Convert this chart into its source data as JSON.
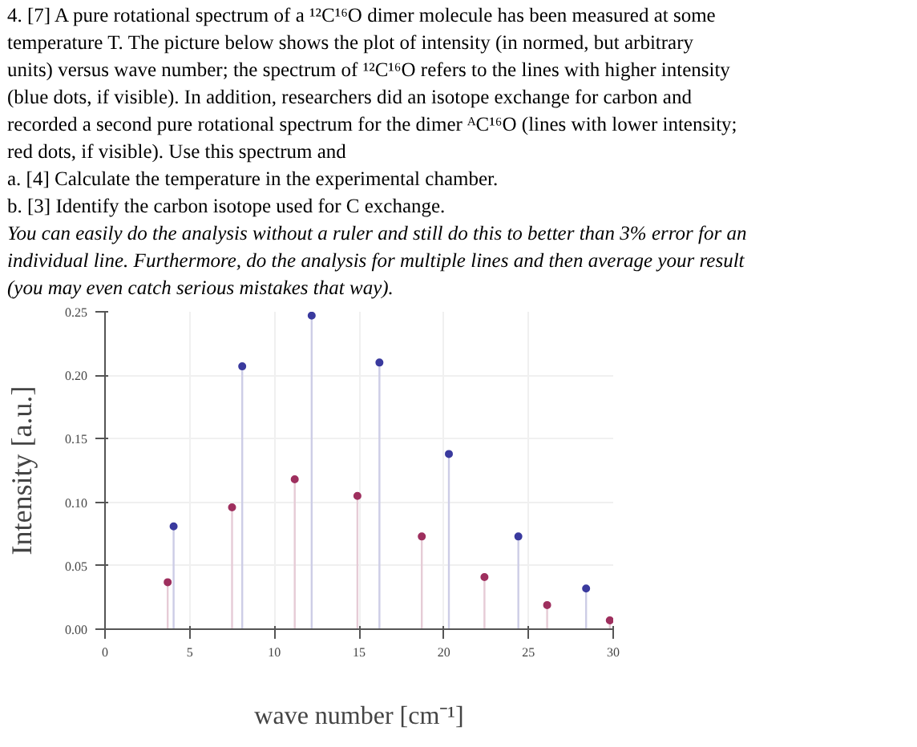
{
  "chart_data": {
    "type": "lollipop",
    "title": "4. [7] A pure rotational spectrum of a ¹²C¹⁶O dimer molecule has been measured at some temperature T. The picture below shows the plot of intensity (in normed, but arbitrary units) versus wave number; the spectrum of ¹²C¹⁶O refers to the lines with higher intensity (blue dots, if visible). In addition, researchers did an isotope exchange for carbon and recorded a second pure rotational spectrum for the dimer ᴬC¹⁶O (lines with lower intensity; red dots, if visible). Use this spectrum and",
    "annotations": [
      "a. [4] Calculate the temperature in the experimental chamber.",
      "b. [3] Identify the carbon isotope used for C exchange.",
      "You can easily do the analysis without a ruler and still do this to better than 3% error for an individual line. Furthermore, do the analysis for multiple lines and then average your result (you may even catch serious mistakes that way)."
    ],
    "xlabel": "wave number [cm⁻¹]",
    "ylabel": "Intensity [a.u.]",
    "xlim": [
      0,
      30
    ],
    "ylim": [
      0,
      0.25
    ],
    "xticks": [
      0,
      5,
      10,
      15,
      20,
      25,
      30
    ],
    "yticks": [
      {
        "value": 0,
        "label": "0.00"
      },
      {
        "value": 0.05,
        "label": "0.05"
      },
      {
        "value": 0.1,
        "label": "0.10"
      },
      {
        "value": 0.15,
        "label": "0.15"
      },
      {
        "value": 0.2,
        "label": "0.20"
      },
      {
        "value": 0.25,
        "label": "0.25"
      }
    ],
    "grid": true,
    "marker": "circle",
    "series": [
      {
        "color": "#3a3a9e",
        "x": [
          4.05,
          8.1,
          12.2,
          16.2,
          20.3,
          24.4,
          28.4
        ],
        "values": [
          0.081,
          0.207,
          0.247,
          0.21,
          0.138,
          0.073,
          0.032
        ]
      },
      {
        "color": "#9e2f5e",
        "x": [
          3.7,
          7.5,
          11.2,
          14.9,
          18.7,
          22.4,
          26.1,
          29.8
        ],
        "values": [
          0.037,
          0.096,
          0.118,
          0.105,
          0.073,
          0.041,
          0.019,
          0.007
        ]
      }
    ]
  }
}
